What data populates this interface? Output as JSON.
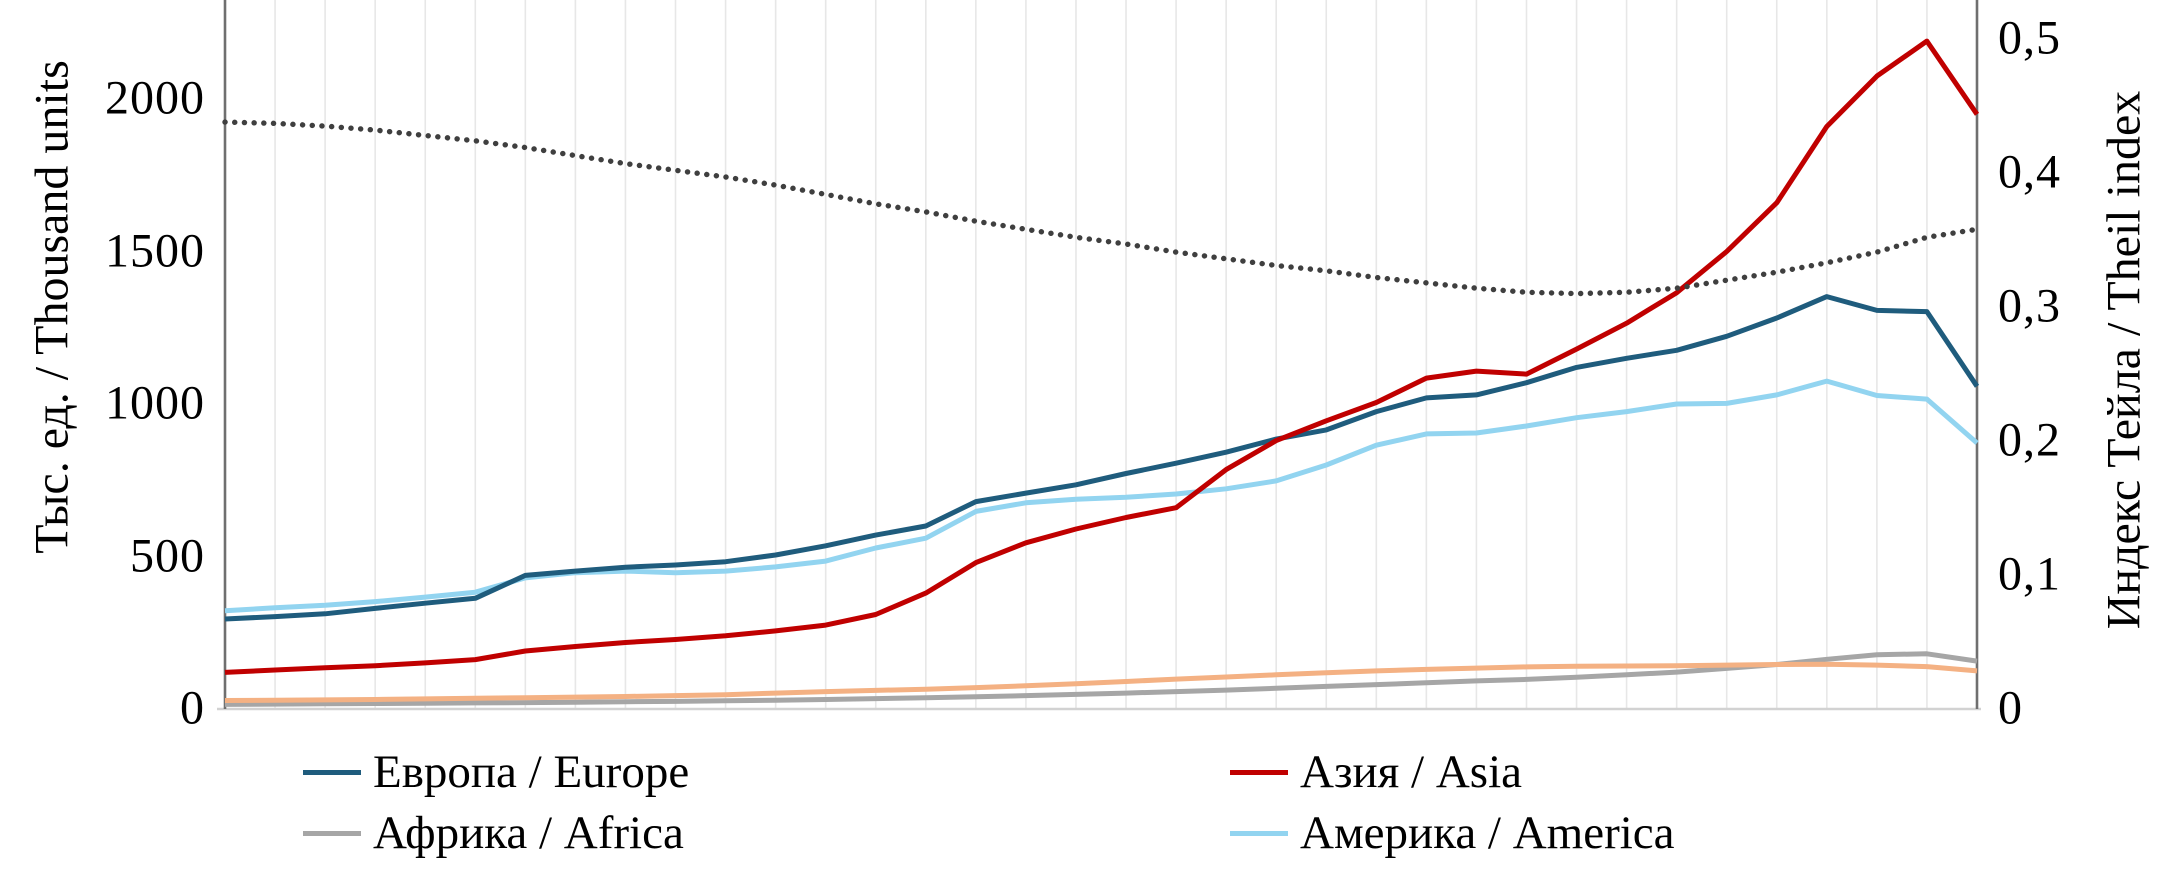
{
  "chart": {
    "left_axis": {
      "title": "Тыс. ед. / Thousand units",
      "ticks": [
        {
          "label": "2000",
          "value": 2000
        },
        {
          "label": "1500",
          "value": 1500
        },
        {
          "label": "1000",
          "value": 1000
        },
        {
          "label": "500",
          "value": 500
        },
        {
          "label": "0",
          "value": 0
        }
      ]
    },
    "right_axis": {
      "title": "Индекс Тейла / Theil index",
      "ticks": [
        {
          "label": "0,5",
          "value": 0.5
        },
        {
          "label": "0,4",
          "value": 0.4
        },
        {
          "label": "0,3",
          "value": 0.3
        },
        {
          "label": "0,2",
          "value": 0.2
        },
        {
          "label": "0,1",
          "value": 0.1
        },
        {
          "label": "0",
          "value": 0
        }
      ]
    },
    "legend": [
      {
        "label": "Европа / Europe",
        "color": "#1F5C7D"
      },
      {
        "label": "Африка / Africa",
        "color": "#A6A6A6"
      },
      {
        "label": "Азия / Asia",
        "color": "#C00000"
      },
      {
        "label": "Америка / America",
        "color": "#92D4F0"
      }
    ],
    "colors": {
      "axis_line": "#6F6F6F",
      "baseline": "#D2D2D2",
      "gridline": "#E7E7E7",
      "theil_dots": "#3F3F3F"
    }
  },
  "chart_data": {
    "type": "line",
    "x_point_count": 36,
    "x_tick_labels_visible": false,
    "grid": "vertical-light",
    "legend_position": "bottom-two-columns",
    "left_axis_range": [
      0,
      2000
    ],
    "right_axis_range": [
      0,
      0.5
    ],
    "series": [
      {
        "name": "Европа / Europe",
        "axis": "left",
        "style": "solid",
        "color": "#1F5C7D",
        "values": [
          295,
          303,
          312,
          330,
          347,
          363,
          438,
          452,
          465,
          472,
          483,
          505,
          535,
          570,
          600,
          680,
          708,
          735,
          772,
          806,
          842,
          885,
          915,
          975,
          1020,
          1030,
          1070,
          1120,
          1150,
          1176,
          1222,
          1282,
          1352,
          1307,
          1303,
          1058
        ]
      },
      {
        "name": "Азия / Asia",
        "axis": "left",
        "style": "solid",
        "color": "#C00000",
        "values": [
          120,
          128,
          135,
          142,
          151,
          162,
          190,
          205,
          218,
          228,
          240,
          256,
          275,
          310,
          380,
          480,
          545,
          590,
          628,
          660,
          785,
          880,
          945,
          1005,
          1085,
          1108,
          1098,
          1180,
          1265,
          1365,
          1500,
          1660,
          1910,
          2075,
          2190,
          1950
        ]
      },
      {
        "name": "Америка / America",
        "axis": "left",
        "style": "solid",
        "color": "#92D4F0",
        "values": [
          322,
          332,
          340,
          352,
          367,
          383,
          430,
          447,
          452,
          447,
          452,
          466,
          485,
          528,
          560,
          648,
          676,
          688,
          694,
          705,
          722,
          748,
          800,
          865,
          902,
          905,
          928,
          955,
          975,
          1000,
          1002,
          1030,
          1075,
          1028,
          1016,
          872
        ]
      },
      {
        "name": "Африка / Africa",
        "axis": "left",
        "style": "solid",
        "color": "#A6A6A6",
        "values": [
          15,
          16,
          17,
          18,
          19,
          20,
          21,
          22,
          24,
          25,
          27,
          29,
          31,
          34,
          37,
          40,
          44,
          48,
          52,
          57,
          62,
          68,
          74,
          80,
          86,
          92,
          97,
          104,
          112,
          121,
          133,
          146,
          163,
          178,
          181,
          157
        ]
      },
      {
        "name": "unlabeled-orange",
        "axis": "left",
        "style": "solid",
        "color": "#F4B183",
        "values": [
          28,
          29,
          30,
          31,
          33,
          35,
          37,
          39,
          41,
          44,
          47,
          52,
          57,
          61,
          65,
          70,
          76,
          83,
          90,
          98,
          105,
          112,
          119,
          125,
          130,
          134,
          138,
          140,
          141,
          142,
          144,
          146,
          147,
          144,
          139,
          125
        ]
      },
      {
        "name": "Индекс Тейла / Theil index",
        "axis": "right",
        "style": "dotted",
        "color": "#3F3F3F",
        "values": [
          0.438,
          0.437,
          0.435,
          0.432,
          0.428,
          0.424,
          0.419,
          0.413,
          0.407,
          0.402,
          0.397,
          0.391,
          0.384,
          0.377,
          0.371,
          0.364,
          0.358,
          0.352,
          0.347,
          0.341,
          0.336,
          0.331,
          0.327,
          0.322,
          0.318,
          0.314,
          0.311,
          0.31,
          0.311,
          0.314,
          0.32,
          0.326,
          0.333,
          0.341,
          0.352,
          0.358
        ]
      }
    ]
  }
}
